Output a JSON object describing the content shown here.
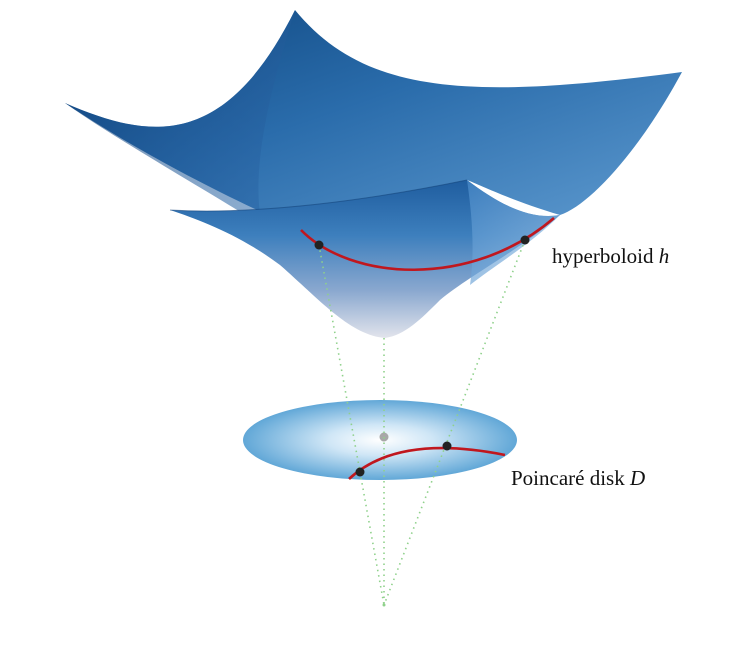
{
  "labels": {
    "hyperboloid_prefix": "hyperboloid ",
    "hyperboloid_symbol": "h",
    "disk_prefix": "Poincaré disk ",
    "disk_symbol": "D"
  },
  "colors": {
    "surface_dark": "#0b3f7a",
    "surface_mid": "#2f73b4",
    "surface_light": "#7fb0dc",
    "surface_pale": "#d8dde8",
    "disk_center": "#ffffff",
    "disk_edge": "#5fa6d6",
    "geodesic": "#c0171e",
    "point": "#222222",
    "center_point": "#a8a8a8",
    "projection_line": "#8fd18b"
  },
  "icons": {
    "hyperboloid": "hyperboloid-surface",
    "disk": "poincare-disk",
    "projection_apex": "projection-point"
  }
}
